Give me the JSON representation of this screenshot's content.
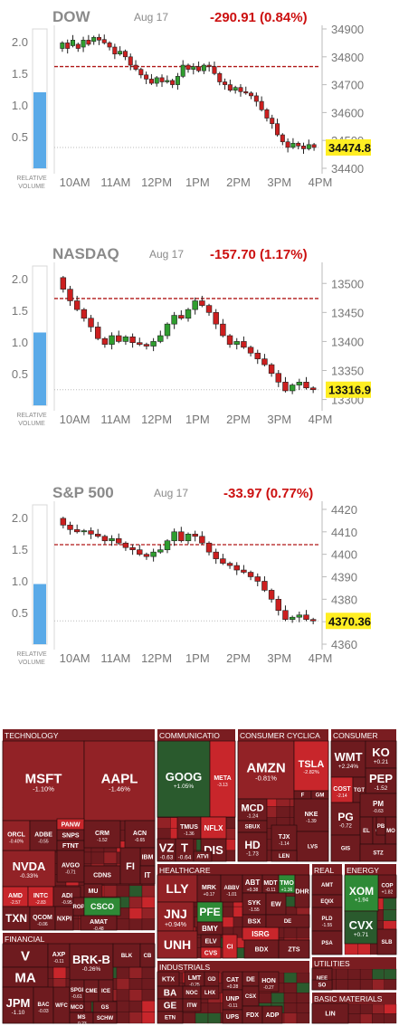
{
  "charts": [
    {
      "name": "DOW",
      "date": "Aug 17",
      "change": "-290.91 (0.84%)",
      "last_label": "34474.8",
      "last": 34474.8,
      "ylim": [
        34400,
        34900
      ],
      "yticks": [
        34400,
        34500,
        34600,
        34700,
        34800,
        34900
      ],
      "ytick_labels": [
        "34400",
        "34500",
        "34600",
        "34700",
        "34800",
        "34900"
      ],
      "prev_close": 34765,
      "rv_ticks": [
        "2.0",
        "1.5",
        "1.0",
        "0.5"
      ],
      "relative_volume": 1.2,
      "candles": [
        [
          34830,
          34850
        ],
        [
          34850,
          34830
        ],
        [
          34840,
          34860
        ],
        [
          34845,
          34830
        ],
        [
          34835,
          34860
        ],
        [
          34860,
          34845
        ],
        [
          34855,
          34870
        ],
        [
          34870,
          34860
        ],
        [
          34862,
          34850
        ],
        [
          34850,
          34835
        ],
        [
          34835,
          34810
        ],
        [
          34810,
          34820
        ],
        [
          34820,
          34800
        ],
        [
          34800,
          34770
        ],
        [
          34770,
          34755
        ],
        [
          34755,
          34735
        ],
        [
          34735,
          34720
        ],
        [
          34720,
          34705
        ],
        [
          34705,
          34725
        ],
        [
          34725,
          34710
        ],
        [
          34710,
          34715
        ],
        [
          34715,
          34700
        ],
        [
          34700,
          34730
        ],
        [
          34730,
          34770
        ],
        [
          34770,
          34755
        ],
        [
          34755,
          34765
        ],
        [
          34765,
          34750
        ],
        [
          34750,
          34770
        ],
        [
          34770,
          34765
        ],
        [
          34765,
          34740
        ],
        [
          34740,
          34710
        ],
        [
          34710,
          34700
        ],
        [
          34700,
          34680
        ],
        [
          34680,
          34690
        ],
        [
          34690,
          34675
        ],
        [
          34675,
          34670
        ],
        [
          34670,
          34660
        ],
        [
          34660,
          34640
        ],
        [
          34640,
          34610
        ],
        [
          34610,
          34580
        ],
        [
          34580,
          34560
        ],
        [
          34560,
          34520
        ],
        [
          34520,
          34495
        ],
        [
          34495,
          34475
        ],
        [
          34475,
          34490
        ],
        [
          34490,
          34480
        ],
        [
          34480,
          34470
        ],
        [
          34470,
          34485
        ],
        [
          34485,
          34474.8
        ]
      ],
      "data_labels": []
    },
    {
      "name": "NASDAQ",
      "date": "Aug 17",
      "change": "-157.70 (1.17%)",
      "last_label": "13316.9",
      "last": 13316.9,
      "ylim": [
        13290,
        13530
      ],
      "yticks": [
        13300,
        13350,
        13400,
        13450,
        13500
      ],
      "ytick_labels": [
        "13300",
        "13350",
        "13400",
        "13450",
        "13500"
      ],
      "prev_close": 13474,
      "rv_ticks": [
        "2.0",
        "1.5",
        "1.0",
        "0.5"
      ],
      "relative_volume": 1.15,
      "candles": [
        [
          13510,
          13490
        ],
        [
          13490,
          13470
        ],
        [
          13470,
          13455
        ],
        [
          13455,
          13440
        ],
        [
          13440,
          13425
        ],
        [
          13425,
          13405
        ],
        [
          13405,
          13395
        ],
        [
          13395,
          13410
        ],
        [
          13410,
          13400
        ],
        [
          13400,
          13408
        ],
        [
          13408,
          13398
        ],
        [
          13398,
          13395
        ],
        [
          13395,
          13392
        ],
        [
          13392,
          13400
        ],
        [
          13400,
          13410
        ],
        [
          13410,
          13430
        ],
        [
          13430,
          13445
        ],
        [
          13445,
          13440
        ],
        [
          13440,
          13455
        ],
        [
          13455,
          13470
        ],
        [
          13470,
          13462
        ],
        [
          13462,
          13450
        ],
        [
          13450,
          13430
        ],
        [
          13430,
          13410
        ],
        [
          13410,
          13395
        ],
        [
          13395,
          13400
        ],
        [
          13400,
          13390
        ],
        [
          13390,
          13380
        ],
        [
          13380,
          13370
        ],
        [
          13370,
          13360
        ],
        [
          13360,
          13345
        ],
        [
          13345,
          13330
        ],
        [
          13330,
          13315
        ],
        [
          13315,
          13325
        ],
        [
          13325,
          13330
        ],
        [
          13330,
          13320
        ],
        [
          13320,
          13316.9
        ]
      ],
      "data_labels": []
    },
    {
      "name": "S&P 500",
      "date": "Aug 17",
      "change": "-33.97 (0.77%)",
      "last_label": "4370.36",
      "last": 4370.36,
      "ylim": [
        4360,
        4422
      ],
      "yticks": [
        4360,
        4370,
        4380,
        4390,
        4400,
        4410,
        4420
      ],
      "ytick_labels": [
        "4360",
        "4370",
        "4380",
        "4390",
        "4400",
        "4410",
        "4420"
      ],
      "prev_close": 4404.3,
      "rv_ticks": [
        "2.0",
        "1.5",
        "1.0",
        "0.5"
      ],
      "relative_volume": 0.95,
      "candles": [
        [
          4416,
          4413
        ],
        [
          4413,
          4411
        ],
        [
          4411,
          4410
        ],
        [
          4410,
          4410.5
        ],
        [
          4410.5,
          4409
        ],
        [
          4409,
          4408
        ],
        [
          4408,
          4406
        ],
        [
          4406,
          4407
        ],
        [
          4407,
          4405
        ],
        [
          4405,
          4403
        ],
        [
          4403,
          4402
        ],
        [
          4402,
          4400
        ],
        [
          4400,
          4399
        ],
        [
          4399,
          4401
        ],
        [
          4401,
          4402
        ],
        [
          4402,
          4406
        ],
        [
          4406,
          4410
        ],
        [
          4410,
          4406
        ],
        [
          4406,
          4409
        ],
        [
          4409,
          4408
        ],
        [
          4408,
          4405
        ],
        [
          4405,
          4401
        ],
        [
          4401,
          4398
        ],
        [
          4398,
          4396
        ],
        [
          4396,
          4395
        ],
        [
          4395,
          4393
        ],
        [
          4393,
          4392
        ],
        [
          4392,
          4390
        ],
        [
          4390,
          4388
        ],
        [
          4388,
          4384
        ],
        [
          4384,
          4380
        ],
        [
          4380,
          4375
        ],
        [
          4375,
          4371
        ],
        [
          4371,
          4372
        ],
        [
          4372,
          4373
        ],
        [
          4373,
          4371
        ],
        [
          4371,
          4370.36
        ]
      ],
      "data_labels": []
    }
  ],
  "xticks": [
    "10AM",
    "11AM",
    "12PM",
    "1PM",
    "2PM",
    "3PM",
    "4PM"
  ],
  "relative_volume_label": [
    "RELATIVE",
    "VOLUME"
  ],
  "sectors": [
    {
      "name": "TECHNOLOGY",
      "tiles": [
        {
          "sym": "MSFT",
          "chg": "-1.10%"
        },
        {
          "sym": "AAPL",
          "chg": "-1.46%"
        },
        {
          "sym": "NVDA",
          "chg": "-0.33%"
        },
        {
          "sym": "ORCL",
          "chg": "-0.40%"
        },
        {
          "sym": "ADBE",
          "chg": "-0.55"
        },
        {
          "sym": "PANW",
          "chg": ""
        },
        {
          "sym": "SNPS",
          "chg": ""
        },
        {
          "sym": "FTNT",
          "chg": ""
        },
        {
          "sym": "CRM",
          "chg": "-1.52"
        },
        {
          "sym": "ACN",
          "chg": "-0.65"
        },
        {
          "sym": "IBM",
          "chg": ""
        },
        {
          "sym": "AVGO",
          "chg": "-0.71"
        },
        {
          "sym": "CDNS",
          "chg": ""
        },
        {
          "sym": "FI",
          "chg": ""
        },
        {
          "sym": "IT",
          "chg": ""
        },
        {
          "sym": "AMD",
          "chg": "-2.57"
        },
        {
          "sym": "INTC",
          "chg": "-2.83"
        },
        {
          "sym": "ADI",
          "chg": "-0.95"
        },
        {
          "sym": "MU",
          "chg": ""
        },
        {
          "sym": "TXN",
          "chg": ""
        },
        {
          "sym": "QCOM",
          "chg": "-0.06"
        },
        {
          "sym": "NXPI",
          "chg": ""
        },
        {
          "sym": "ROP",
          "chg": ""
        },
        {
          "sym": "CSCO",
          "chg": ""
        },
        {
          "sym": "AMAT",
          "chg": "-0.48"
        }
      ]
    },
    {
      "name": "COMMUNICATIO",
      "tiles": [
        {
          "sym": "GOOG",
          "chg": "+1.05%"
        },
        {
          "sym": "META",
          "chg": "-3.13"
        },
        {
          "sym": "TMUS",
          "chg": "-1.36"
        },
        {
          "sym": "NFLX",
          "chg": ""
        },
        {
          "sym": "VZ",
          "chg": "-0.63"
        },
        {
          "sym": "T",
          "chg": "-0.64"
        },
        {
          "sym": "DIS",
          "chg": ""
        },
        {
          "sym": "ATVI",
          "chg": ""
        }
      ]
    },
    {
      "name": "CONSUMER CYCLICA",
      "tiles": [
        {
          "sym": "AMZN",
          "chg": "-0.81%"
        },
        {
          "sym": "TSLA",
          "chg": "-2.82%"
        },
        {
          "sym": "F",
          "chg": ""
        },
        {
          "sym": "GM",
          "chg": ""
        },
        {
          "sym": "MCD",
          "chg": "-1.24"
        },
        {
          "sym": "SBUX",
          "chg": ""
        },
        {
          "sym": "NKE",
          "chg": "-1.39"
        },
        {
          "sym": "HD",
          "chg": "-1.73"
        },
        {
          "sym": "TJX",
          "chg": "-1.14"
        },
        {
          "sym": "LVS",
          "chg": ""
        },
        {
          "sym": "LEN",
          "chg": ""
        }
      ]
    },
    {
      "name": "CONSUMER",
      "tiles": [
        {
          "sym": "WMT",
          "chg": "+2.24%"
        },
        {
          "sym": "KO",
          "chg": "+0.21"
        },
        {
          "sym": "PEP",
          "chg": "-1.52"
        },
        {
          "sym": "COST",
          "chg": "-2.14"
        },
        {
          "sym": "TGT",
          "chg": ""
        },
        {
          "sym": "PG",
          "chg": "-0.72"
        },
        {
          "sym": "PM",
          "chg": "-0.63"
        },
        {
          "sym": "EL",
          "chg": ""
        },
        {
          "sym": "CL",
          "chg": ""
        },
        {
          "sym": "MO",
          "chg": ""
        },
        {
          "sym": "GIS",
          "chg": ""
        },
        {
          "sym": "STZ",
          "chg": ""
        },
        {
          "sym": "PB",
          "chg": ""
        }
      ]
    },
    {
      "name": "HEALTHCARE",
      "tiles": [
        {
          "sym": "LLY",
          "chg": ""
        },
        {
          "sym": "MRK",
          "chg": "+0.17"
        },
        {
          "sym": "ABBV",
          "chg": "-1.01"
        },
        {
          "sym": "ABT",
          "chg": "+0.38"
        },
        {
          "sym": "MDT",
          "chg": "-0.11"
        },
        {
          "sym": "TMO",
          "chg": "+1.36"
        },
        {
          "sym": "JNJ",
          "chg": "+0.94%"
        },
        {
          "sym": "PFE",
          "chg": ""
        },
        {
          "sym": "BMY",
          "chg": ""
        },
        {
          "sym": "SYK",
          "chg": "-1.55"
        },
        {
          "sym": "EW",
          "chg": ""
        },
        {
          "sym": "DHR",
          "chg": ""
        },
        {
          "sym": "BSX",
          "chg": ""
        },
        {
          "sym": "ISRG",
          "chg": ""
        },
        {
          "sym": "UNH",
          "chg": ""
        },
        {
          "sym": "ELV",
          "chg": ""
        },
        {
          "sym": "CI",
          "chg": ""
        },
        {
          "sym": "CVS",
          "chg": ""
        },
        {
          "sym": "BDX",
          "chg": ""
        },
        {
          "sym": "ZTS",
          "chg": ""
        },
        {
          "sym": "DE",
          "chg": ""
        }
      ]
    },
    {
      "name": "REAL",
      "tiles": [
        {
          "sym": "AMT",
          "chg": ""
        },
        {
          "sym": "EQIX",
          "chg": ""
        },
        {
          "sym": "PLD",
          "chg": "-1.55"
        },
        {
          "sym": "PSA",
          "chg": ""
        }
      ]
    },
    {
      "name": "ENERGY",
      "tiles": [
        {
          "sym": "COP",
          "chg": "+1.82"
        },
        {
          "sym": "XOM",
          "chg": "+1.94"
        },
        {
          "sym": "CVX",
          "chg": "+0.71"
        },
        {
          "sym": "SLB",
          "chg": ""
        }
      ]
    },
    {
      "name": "FINANCIAL",
      "tiles": [
        {
          "sym": "V",
          "chg": ""
        },
        {
          "sym": "AXP",
          "chg": "-0.11"
        },
        {
          "sym": "BRK-B",
          "chg": "-0.26%"
        },
        {
          "sym": "BLK",
          "chg": ""
        },
        {
          "sym": "CB",
          "chg": ""
        },
        {
          "sym": "MA",
          "chg": ""
        },
        {
          "sym": "JPM",
          "chg": "-1.10"
        },
        {
          "sym": "BAC",
          "chg": "-0.03"
        },
        {
          "sym": "WFC",
          "chg": ""
        },
        {
          "sym": "SPGI",
          "chg": "-0.61"
        },
        {
          "sym": "CME",
          "chg": ""
        },
        {
          "sym": "ICE",
          "chg": ""
        },
        {
          "sym": "MCO",
          "chg": ""
        },
        {
          "sym": "MS",
          "chg": "-0.23"
        },
        {
          "sym": "GS",
          "chg": ""
        },
        {
          "sym": "SCHW",
          "chg": ""
        }
      ]
    },
    {
      "name": "INDUSTRIALS",
      "tiles": [
        {
          "sym": "KTX",
          "chg": ""
        },
        {
          "sym": "LMT",
          "chg": "-0.25"
        },
        {
          "sym": "GD",
          "chg": ""
        },
        {
          "sym": "BA",
          "chg": ""
        },
        {
          "sym": "NOC",
          "chg": ""
        },
        {
          "sym": "LHX",
          "chg": ""
        },
        {
          "sym": "GE",
          "chg": ""
        },
        {
          "sym": "ITW",
          "chg": ""
        },
        {
          "sym": "ETN",
          "chg": ""
        },
        {
          "sym": "CAT",
          "chg": "+0.28"
        },
        {
          "sym": "DE",
          "chg": ""
        },
        {
          "sym": "UNP",
          "chg": "-0.11"
        },
        {
          "sym": "CSX",
          "chg": ""
        },
        {
          "sym": "HON",
          "chg": "-0.27"
        },
        {
          "sym": "UPS",
          "chg": ""
        },
        {
          "sym": "FDX",
          "chg": ""
        },
        {
          "sym": "ADP",
          "chg": ""
        }
      ]
    },
    {
      "name": "UTILITIES",
      "tiles": [
        {
          "sym": "NEE",
          "chg": "-0.07"
        },
        {
          "sym": "SO",
          "chg": ""
        }
      ]
    },
    {
      "name": "BASIC MATERIALS",
      "tiles": [
        {
          "sym": "LIN",
          "chg": ""
        }
      ]
    }
  ],
  "colors": {
    "up": "#2f9e2f",
    "down": "#cc1f1f",
    "change_text": "#cc1010",
    "ref_line": "#b01818",
    "bar": "#5aaae8",
    "highlight": "#ffee22",
    "heat_dark": "#6e1b1f",
    "heat_mid": "#922226",
    "heat_red": "#c8262b",
    "heat_green": "#2e8a36",
    "heat_green_dark": "#2a5a2d"
  }
}
